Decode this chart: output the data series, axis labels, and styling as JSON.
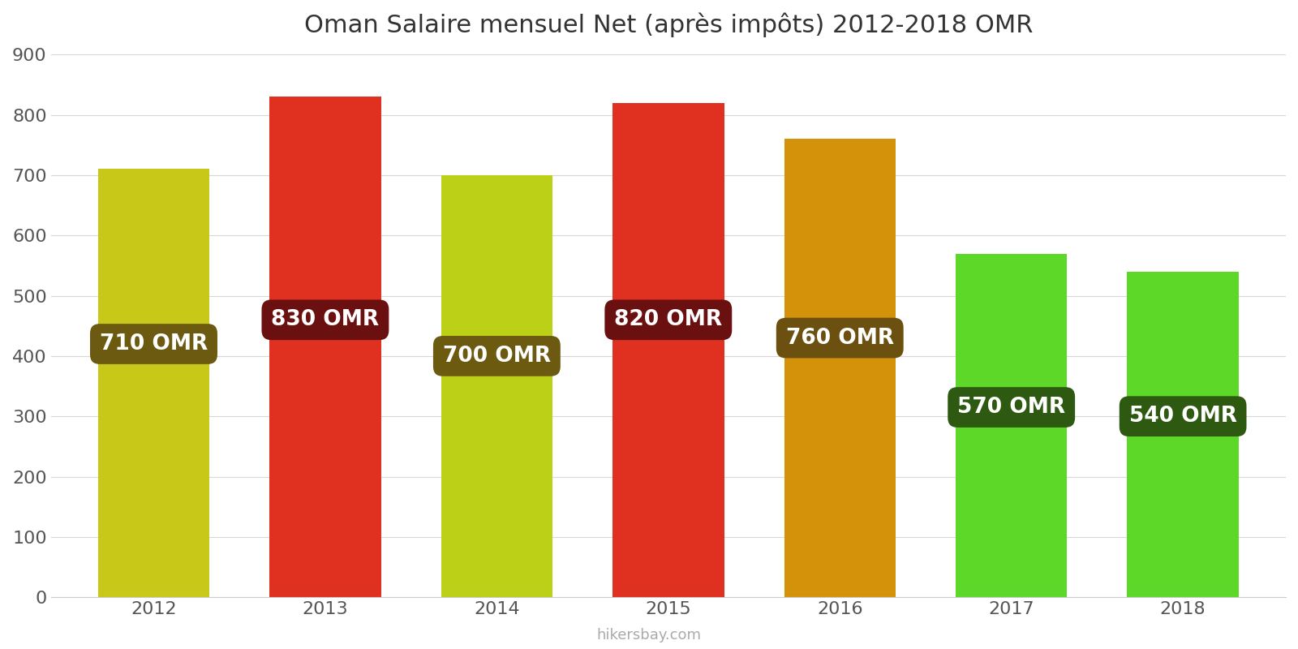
{
  "years": [
    2012,
    2013,
    2014,
    2015,
    2016,
    2017,
    2018
  ],
  "values": [
    710,
    830,
    700,
    820,
    760,
    570,
    540
  ],
  "bar_colors": [
    "#c8c818",
    "#e03020",
    "#bcd018",
    "#e03020",
    "#d4920a",
    "#5ed828",
    "#5ed828"
  ],
  "label_bg_colors": [
    "#6b5a10",
    "#6b1010",
    "#6b5a10",
    "#6b1010",
    "#6b5010",
    "#2d5a10",
    "#2d5a10"
  ],
  "title": "Oman Salaire mensuel Net (après impôts) 2012-2018 OMR",
  "ylabel_values": [
    0,
    100,
    200,
    300,
    400,
    500,
    600,
    700,
    800,
    900
  ],
  "ylim": [
    0,
    900
  ],
  "watermark": "hikersbay.com",
  "title_fontsize": 22,
  "label_fontsize": 19,
  "tick_fontsize": 16,
  "bar_width": 0.65,
  "label_y_positions": [
    420,
    460,
    400,
    460,
    430,
    315,
    300
  ]
}
